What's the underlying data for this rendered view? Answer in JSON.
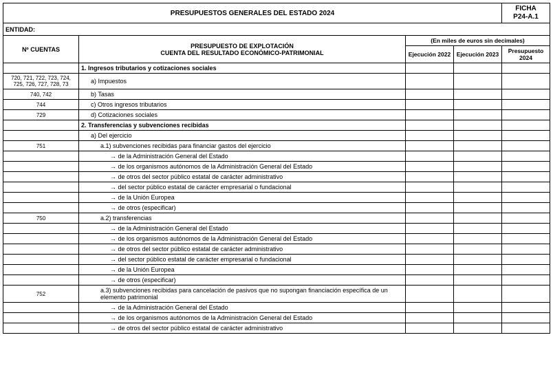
{
  "header": {
    "title": "PRESUPUESTOS GENERALES DEL ESTADO 2024",
    "ficha_line1": "FICHA",
    "ficha_line2": "P24-A.1",
    "entidad_label": "ENTIDAD:"
  },
  "columns": {
    "cuentas": "Nº CUENTAS",
    "main_line1": "PRESUPUESTO DE EXPLOTACIÓN",
    "main_line2": "CUENTA DEL RESULTADO ECONÓMICO-PATRIMONIAL",
    "span_label": "(En miles de euros sin decimales)",
    "col1": "Ejecución 2022",
    "col2": "Ejecución 2023",
    "col3": "Presupuesto 2024"
  },
  "rows": [
    {
      "cuentas": "",
      "desc": "1. Ingresos tributarios y cotizaciones sociales",
      "bold": true,
      "indent": 0
    },
    {
      "cuentas": "720, 721, 722, 723, 724, 725, 726, 727, 728, 73",
      "desc": "a) Impuestos",
      "indent": 1
    },
    {
      "cuentas": "740, 742",
      "desc": "b) Tasas",
      "indent": 1
    },
    {
      "cuentas": "744",
      "desc": "c) Otros ingresos tributarios",
      "indent": 1
    },
    {
      "cuentas": "729",
      "desc": "d) Cotizaciones sociales",
      "indent": 1
    },
    {
      "cuentas": "",
      "desc": "2. Transferencias y subvenciones recibidas",
      "bold": true,
      "indent": 0
    },
    {
      "cuentas": "",
      "desc": "a) Del ejercicio",
      "indent": 1
    },
    {
      "cuentas": "751",
      "desc": "a.1) subvenciones recibidas para financiar gastos del ejercicio",
      "indent": 2
    },
    {
      "cuentas": "",
      "desc": "de la Administración General del Estado",
      "indent": 3,
      "arrow": true
    },
    {
      "cuentas": "",
      "desc": "de los organismos autónomos de la Administración General del Estado",
      "indent": 3,
      "arrow": true
    },
    {
      "cuentas": "",
      "desc": "de otros del sector público estatal de carácter administrativo",
      "indent": 3,
      "arrow": true
    },
    {
      "cuentas": "",
      "desc": "del sector público estatal de carácter empresarial o fundacional",
      "indent": 3,
      "arrow": true
    },
    {
      "cuentas": "",
      "desc": "de la Unión Europea",
      "indent": 3,
      "arrow": true
    },
    {
      "cuentas": "",
      "desc": "de otros (especificar)",
      "indent": 3,
      "arrow": true
    },
    {
      "cuentas": "750",
      "desc": "a.2) transferencias",
      "indent": 2
    },
    {
      "cuentas": "",
      "desc": "de la Administración General del Estado",
      "indent": 3,
      "arrow": true
    },
    {
      "cuentas": "",
      "desc": "de los organismos autónomos de la Administración General del Estado",
      "indent": 3,
      "arrow": true
    },
    {
      "cuentas": "",
      "desc": "de otros del sector público estatal de carácter administrativo",
      "indent": 3,
      "arrow": true
    },
    {
      "cuentas": "",
      "desc": "del sector público estatal de carácter empresarial o fundacional",
      "indent": 3,
      "arrow": true
    },
    {
      "cuentas": "",
      "desc": "de la Unión Europea",
      "indent": 3,
      "arrow": true
    },
    {
      "cuentas": "",
      "desc": "de otros (especificar)",
      "indent": 3,
      "arrow": true
    },
    {
      "cuentas": "752",
      "desc": "a.3) subvenciones recibidas para cancelación de pasivos que no supongan financiación específica de un elemento patrimonial",
      "indent": 2
    },
    {
      "cuentas": "",
      "desc": "de la Administración General del Estado",
      "indent": 3,
      "arrow": true
    },
    {
      "cuentas": "",
      "desc": "de los organismos autónomos de la Administración General del Estado",
      "indent": 3,
      "arrow": true
    },
    {
      "cuentas": "",
      "desc": "de otros del sector público estatal de carácter administrativo",
      "indent": 3,
      "arrow": true
    }
  ]
}
